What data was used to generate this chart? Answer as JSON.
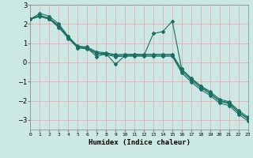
{
  "xlabel": "Humidex (Indice chaleur)",
  "ylabel": "",
  "bg_color": "#cce8e4",
  "grid_color": "#e8b4b4",
  "line_color": "#1a6e62",
  "xlim": [
    0,
    23
  ],
  "ylim": [
    -3.5,
    3.0
  ],
  "yticks": [
    -3,
    -2,
    -1,
    0,
    1,
    2,
    3
  ],
  "xtick_labels": [
    "0",
    "1",
    "2",
    "3",
    "4",
    "5",
    "6",
    "7",
    "8",
    "9",
    "10",
    "11",
    "12",
    "13",
    "14",
    "15",
    "16",
    "17",
    "18",
    "19",
    "20",
    "21",
    "22",
    "23"
  ],
  "line1_x": [
    0,
    1,
    2,
    3,
    4,
    5,
    6,
    7,
    8,
    9,
    10,
    11,
    12,
    13,
    14,
    15,
    16,
    17,
    18,
    19,
    20,
    21,
    22,
    23
  ],
  "line1_y": [
    2.25,
    2.55,
    2.4,
    2.0,
    1.35,
    0.8,
    0.75,
    0.3,
    0.45,
    -0.1,
    0.35,
    0.4,
    0.35,
    1.5,
    1.6,
    2.15,
    -0.35,
    -0.85,
    -1.25,
    -1.6,
    -2.0,
    -2.1,
    -2.6,
    -2.9
  ],
  "line2_x": [
    0,
    1,
    2,
    3,
    4,
    5,
    6,
    7,
    8,
    9,
    10,
    11,
    12,
    13,
    14,
    15,
    16,
    17,
    18,
    19,
    20,
    21,
    22,
    23
  ],
  "line2_y": [
    2.25,
    2.45,
    2.3,
    1.92,
    1.35,
    0.85,
    0.8,
    0.55,
    0.5,
    0.4,
    0.42,
    0.42,
    0.42,
    0.42,
    0.42,
    0.42,
    -0.35,
    -0.82,
    -1.22,
    -1.52,
    -1.92,
    -2.05,
    -2.5,
    -2.85
  ],
  "line3_x": [
    0,
    1,
    2,
    3,
    4,
    5,
    6,
    7,
    8,
    9,
    10,
    11,
    12,
    13,
    14,
    15,
    16,
    17,
    18,
    19,
    20,
    21,
    22,
    23
  ],
  "line3_y": [
    2.25,
    2.42,
    2.28,
    1.88,
    1.3,
    0.8,
    0.75,
    0.5,
    0.45,
    0.35,
    0.37,
    0.37,
    0.37,
    0.37,
    0.37,
    0.37,
    -0.45,
    -0.92,
    -1.32,
    -1.62,
    -2.02,
    -2.15,
    -2.6,
    -2.95
  ],
  "line4_x": [
    0,
    1,
    2,
    3,
    4,
    5,
    6,
    7,
    8,
    9,
    10,
    11,
    12,
    13,
    14,
    15,
    16,
    17,
    18,
    19,
    20,
    21,
    22,
    23
  ],
  "line4_y": [
    2.25,
    2.38,
    2.25,
    1.82,
    1.25,
    0.75,
    0.7,
    0.45,
    0.4,
    0.3,
    0.32,
    0.32,
    0.32,
    0.32,
    0.32,
    0.32,
    -0.55,
    -1.02,
    -1.42,
    -1.72,
    -2.12,
    -2.25,
    -2.7,
    -3.05
  ]
}
